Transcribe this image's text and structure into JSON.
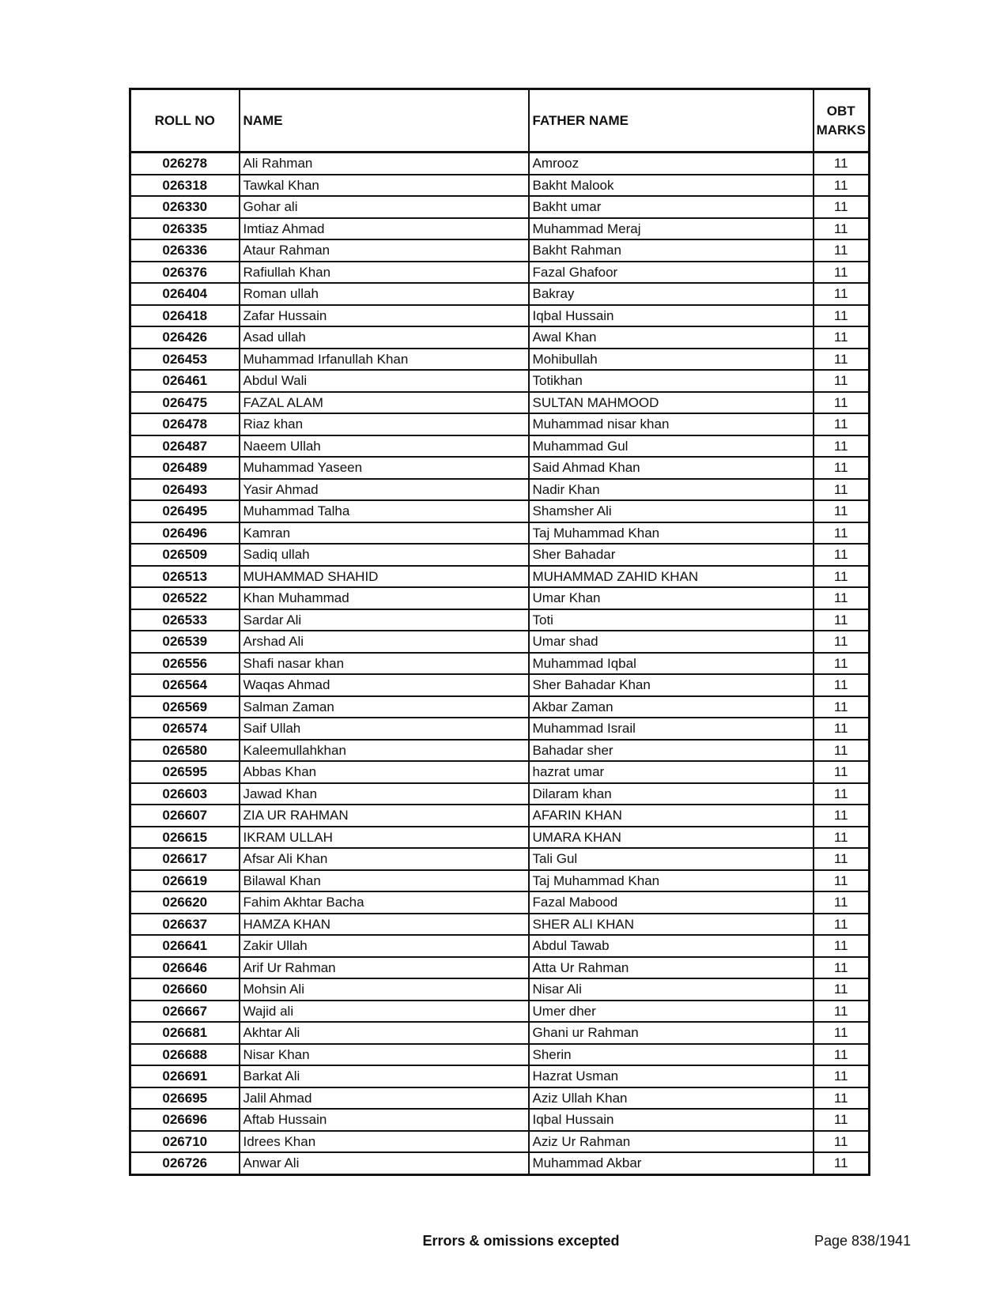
{
  "table": {
    "headers": {
      "roll_no": "ROLL NO",
      "name": "NAME",
      "father_name": "FATHER NAME",
      "marks_line1": "OBT",
      "marks_line2": "MARKS"
    },
    "rows": [
      [
        "026278",
        "Ali Rahman",
        "Amrooz",
        "11"
      ],
      [
        "026318",
        "Tawkal Khan",
        "Bakht Malook",
        "11"
      ],
      [
        "026330",
        "Gohar ali",
        "Bakht umar",
        "11"
      ],
      [
        "026335",
        "Imtiaz Ahmad",
        "Muhammad Meraj",
        "11"
      ],
      [
        "026336",
        "Ataur Rahman",
        "Bakht Rahman",
        "11"
      ],
      [
        "026376",
        "Rafiullah Khan",
        "Fazal Ghafoor",
        "11"
      ],
      [
        "026404",
        "Roman ullah",
        "Bakray",
        "11"
      ],
      [
        "026418",
        "Zafar Hussain",
        "Iqbal Hussain",
        "11"
      ],
      [
        "026426",
        "Asad ullah",
        "Awal Khan",
        "11"
      ],
      [
        "026453",
        "Muhammad Irfanullah Khan",
        "Mohibullah",
        "11"
      ],
      [
        "026461",
        "Abdul Wali",
        "Totikhan",
        "11"
      ],
      [
        "026475",
        "FAZAL ALAM",
        "SULTAN MAHMOOD",
        "11"
      ],
      [
        "026478",
        "Riaz khan",
        "Muhammad nisar khan",
        "11"
      ],
      [
        "026487",
        "Naeem Ullah",
        "Muhammad Gul",
        "11"
      ],
      [
        "026489",
        "Muhammad Yaseen",
        "Said Ahmad Khan",
        "11"
      ],
      [
        "026493",
        "Yasir Ahmad",
        "Nadir Khan",
        "11"
      ],
      [
        "026495",
        "Muhammad Talha",
        "Shamsher Ali",
        "11"
      ],
      [
        "026496",
        "Kamran",
        "Taj Muhammad Khan",
        "11"
      ],
      [
        "026509",
        "Sadiq ullah",
        "Sher Bahadar",
        "11"
      ],
      [
        "026513",
        "MUHAMMAD SHAHID",
        "MUHAMMAD ZAHID KHAN",
        "11"
      ],
      [
        "026522",
        "Khan Muhammad",
        "Umar Khan",
        "11"
      ],
      [
        "026533",
        "Sardar Ali",
        "Toti",
        "11"
      ],
      [
        "026539",
        "Arshad Ali",
        "Umar shad",
        "11"
      ],
      [
        "026556",
        "Shafi nasar khan",
        "Muhammad Iqbal",
        "11"
      ],
      [
        "026564",
        "Waqas Ahmad",
        "Sher Bahadar Khan",
        "11"
      ],
      [
        "026569",
        "Salman Zaman",
        "Akbar Zaman",
        "11"
      ],
      [
        "026574",
        "Saif Ullah",
        "Muhammad Israil",
        "11"
      ],
      [
        "026580",
        "Kaleemullahkhan",
        "Bahadar sher",
        "11"
      ],
      [
        "026595",
        "Abbas Khan",
        "hazrat umar",
        "11"
      ],
      [
        "026603",
        "Jawad Khan",
        "Dilaram khan",
        "11"
      ],
      [
        "026607",
        "ZIA UR RAHMAN",
        "AFARIN KHAN",
        "11"
      ],
      [
        "026615",
        "IKRAM ULLAH",
        "UMARA KHAN",
        "11"
      ],
      [
        "026617",
        "Afsar Ali Khan",
        "Tali Gul",
        "11"
      ],
      [
        "026619",
        "Bilawal Khan",
        "Taj Muhammad Khan",
        "11"
      ],
      [
        "026620",
        "Fahim Akhtar Bacha",
        "Fazal Mabood",
        "11"
      ],
      [
        "026637",
        "HAMZA KHAN",
        "SHER ALI KHAN",
        "11"
      ],
      [
        "026641",
        "Zakir Ullah",
        "Abdul Tawab",
        "11"
      ],
      [
        "026646",
        "Arif Ur Rahman",
        "Atta Ur Rahman",
        "11"
      ],
      [
        "026660",
        "Mohsin Ali",
        "Nisar Ali",
        "11"
      ],
      [
        "026667",
        "Wajid ali",
        "Umer dher",
        "11"
      ],
      [
        "026681",
        "Akhtar Ali",
        "Ghani ur Rahman",
        "11"
      ],
      [
        "026688",
        "Nisar Khan",
        "Sherin",
        "11"
      ],
      [
        "026691",
        "Barkat Ali",
        "Hazrat Usman",
        "11"
      ],
      [
        "026695",
        "Jalil Ahmad",
        "Aziz Ullah Khan",
        "11"
      ],
      [
        "026696",
        "Aftab Hussain",
        "Iqbal Hussain",
        "11"
      ],
      [
        "026710",
        "Idrees Khan",
        "Aziz Ur Rahman",
        "11"
      ],
      [
        "026726",
        "Anwar Ali",
        "Muhammad Akbar",
        "11"
      ]
    ]
  },
  "footer": {
    "note": "Errors & omissions excepted",
    "page": "Page 838/1941"
  }
}
